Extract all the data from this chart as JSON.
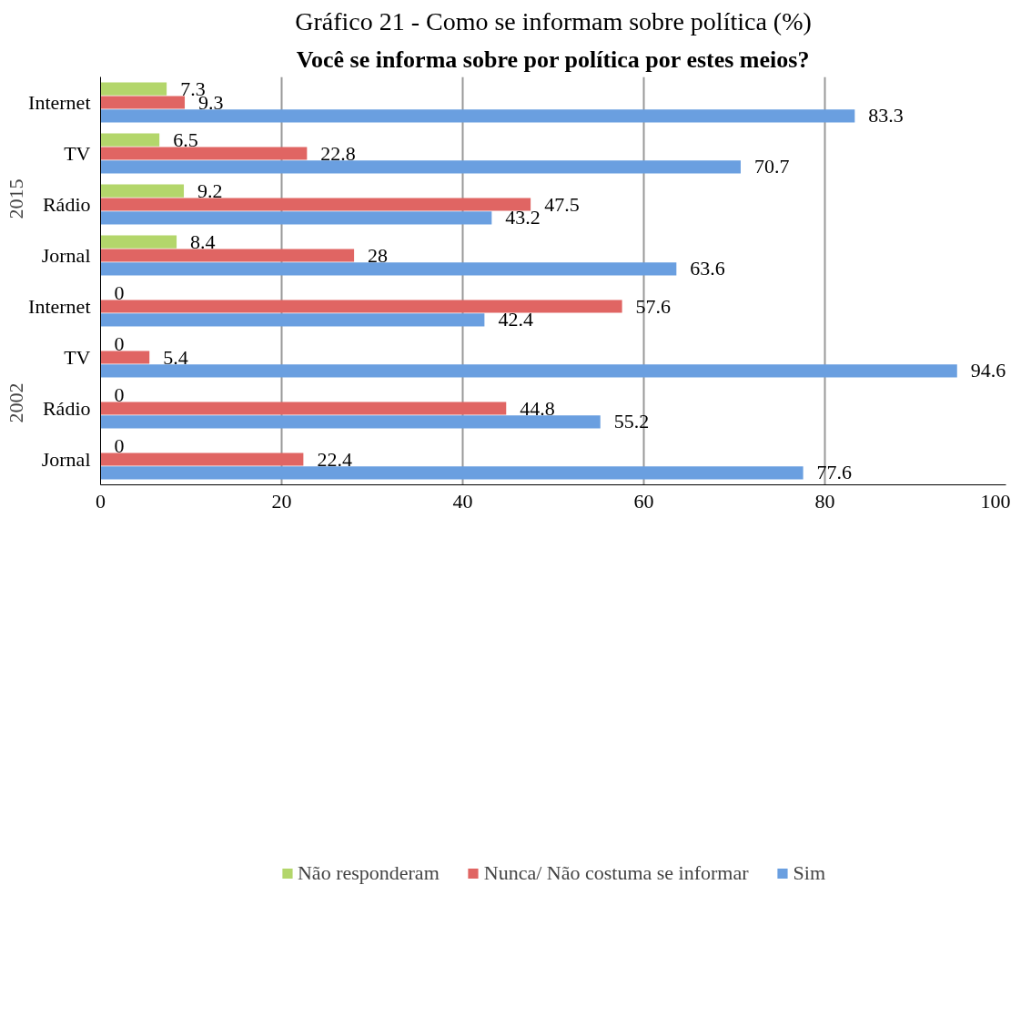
{
  "chart_data": {
    "type": "bar",
    "orientation": "horizontal",
    "title": "Gráfico 21 - Como se informam sobre política (%)",
    "subtitle": "Você se informa sobre por política por estes meios?",
    "categories": [
      "Internet",
      "TV",
      "Rádio",
      "Jornal",
      "Internet",
      "TV",
      "Rádio",
      "Jornal"
    ],
    "annotations": [
      "2015",
      "2002"
    ],
    "series": [
      {
        "name": "Não responderam",
        "color": "#b3d66b",
        "values": [
          7.3,
          6.5,
          9.2,
          8.4,
          0,
          0,
          0,
          0
        ]
      },
      {
        "name": "Nunca/ Não costuma se informar",
        "color": "#e06563",
        "values": [
          9.3,
          22.8,
          47.5,
          28,
          57.6,
          5.4,
          44.8,
          22.4
        ]
      },
      {
        "name": "Sim",
        "color": "#6a9fe0",
        "values": [
          83.3,
          70.7,
          43.2,
          63.6,
          42.4,
          94.6,
          55.2,
          77.6
        ]
      }
    ],
    "xlim": [
      0,
      100
    ],
    "xticks": [
      0,
      20,
      40,
      60,
      80,
      100
    ],
    "grid": "x",
    "legend": "bottom",
    "data_labels": true
  }
}
